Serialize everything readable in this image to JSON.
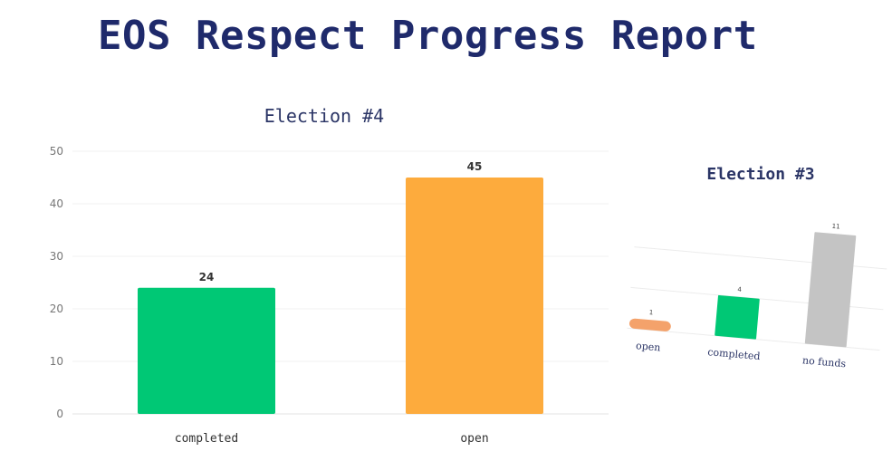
{
  "page": {
    "title": "EOS Respect Progress Report"
  },
  "chart_data": [
    {
      "type": "bar",
      "title": "Election #4",
      "categories": [
        "completed",
        "open"
      ],
      "values": [
        24,
        45
      ],
      "colors": [
        "#00c875",
        "#fdab3d"
      ],
      "ylim": [
        0,
        50
      ],
      "yticks": [
        0,
        10,
        20,
        30,
        40,
        50
      ],
      "grid": true,
      "xlabel": "",
      "ylabel": ""
    },
    {
      "type": "bar",
      "title": "Election #3",
      "categories": [
        "open",
        "completed",
        "no funds"
      ],
      "values": [
        1,
        4,
        11
      ],
      "colors": [
        "#f4a26b",
        "#00c875",
        "#c4c4c4"
      ],
      "ylim": [
        0,
        12
      ],
      "grid": true,
      "xlabel": "",
      "ylabel": ""
    }
  ]
}
